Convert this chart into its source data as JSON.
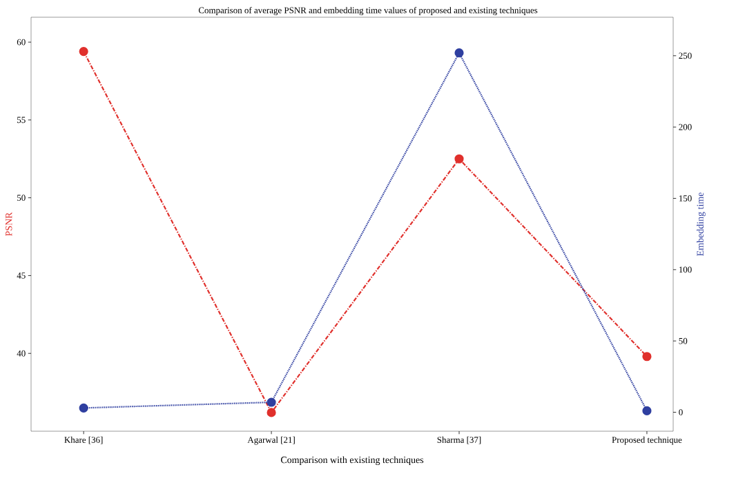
{
  "chart_data": {
    "type": "line",
    "title": "Comparison of average PSNR and embedding time values of proposed and existing techniques",
    "xlabel": "Comparison with existing techniques",
    "ylabel": "PSNR",
    "y2label": "Embedding time",
    "categories": [
      "Khare [36]",
      "Agarwal [21]",
      "Sharma [37]",
      "Proposed technique"
    ],
    "series": [
      {
        "color": "#e0302c",
        "values": [
          59.4,
          36.2,
          52.5,
          39.8
        ],
        "axis": "y",
        "line_style": "dashed"
      },
      {
        "color": "#2f3fa0",
        "values": [
          3,
          7,
          252,
          1
        ],
        "axis": "y2",
        "line_style": "dotted"
      }
    ],
    "ylim": [
      35,
      61.6
    ],
    "yticks": [
      40,
      45,
      50,
      55,
      60
    ],
    "y2lim": [
      -13.3,
      277
    ],
    "y2ticks": [
      0,
      50,
      100,
      150,
      200,
      250
    ],
    "marker": "circle"
  }
}
